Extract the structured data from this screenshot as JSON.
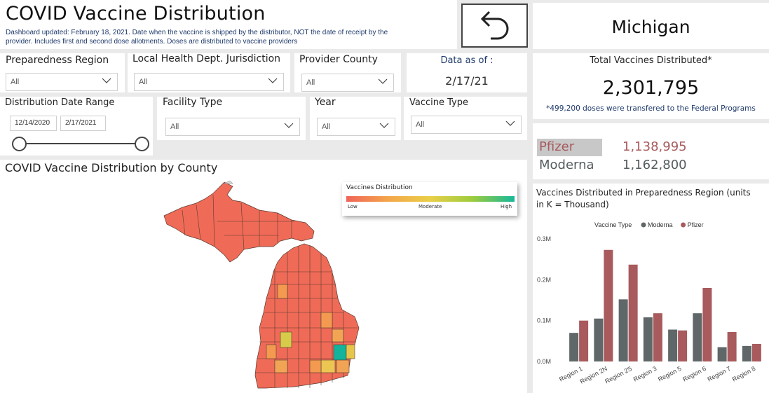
{
  "header": {
    "title": "COVID Vaccine Distribution",
    "subtitle": "Dashboard updated: February 18, 2021. Date when the vaccine is shipped by the distributor, NOT the date of receipt by the provider. Includes first and second dose allotments. Doses are distributed to vaccine providers"
  },
  "state": "Michigan",
  "filters": {
    "preparedness_region": {
      "label": "Preparedness Region",
      "value": "All"
    },
    "lhd_jurisdiction": {
      "label": "Local Health Dept. Jurisdiction",
      "value": "All"
    },
    "provider_county": {
      "label": "Provider County",
      "value": "All"
    },
    "data_as_of_label": "Data as of :",
    "data_as_of_value": "2/17/21",
    "date_range": {
      "label": "Distribution Date Range",
      "start": "12/14/2020",
      "end": "2/17/2021"
    },
    "facility_type": {
      "label": "Facility Type",
      "value": "All"
    },
    "year": {
      "label": "Year",
      "value": "All"
    },
    "vaccine_type": {
      "label": "Vaccine Type",
      "value": "All"
    }
  },
  "totals": {
    "label": "Total Vaccines Distributed*",
    "value": "2,301,795",
    "note": "*499,200 doses were transfered to the Federal Programs"
  },
  "breakdown": [
    {
      "name": "Pfizer",
      "value": "1,138,995",
      "color": "#a85a5c"
    },
    {
      "name": "Moderna",
      "value": "1,162,800",
      "color": "#545c5e"
    }
  ],
  "map": {
    "title": "COVID Vaccine Distribution by County",
    "legend_title": "Vaccines Distribution",
    "legend_low": "Low",
    "legend_mid": "Moderate",
    "legend_high": "High"
  },
  "chart_data": {
    "type": "bar",
    "title": "Vaccines Distributed in Preparedness Region (units in K = Thousand)",
    "legend_label": "Vaccine Type",
    "legend_placement": "top",
    "categories": [
      "Region 1",
      "Region 2N",
      "Region 2S",
      "Region 3",
      "Region 5",
      "Region 6",
      "Region 7",
      "Region 8"
    ],
    "series": [
      {
        "name": "Moderna",
        "color": "#5f6768",
        "values": [
          0.07,
          0.105,
          0.152,
          0.108,
          0.078,
          0.118,
          0.035,
          0.038
        ]
      },
      {
        "name": "Pfizer",
        "color": "#a85a5c",
        "values": [
          0.1,
          0.273,
          0.237,
          0.118,
          0.076,
          0.18,
          0.072,
          0.043
        ]
      }
    ],
    "ylim": [
      0,
      0.3
    ],
    "yticks": [
      "0.0M",
      "0.1M",
      "0.2M",
      "0.3M"
    ]
  }
}
